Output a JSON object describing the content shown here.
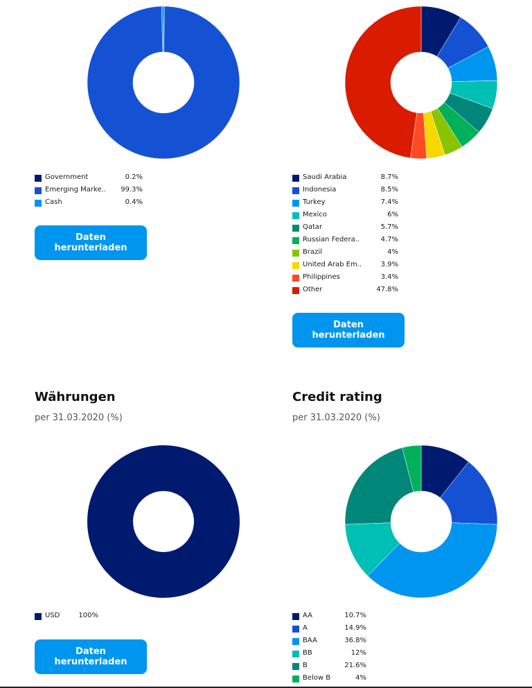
{
  "colors": {
    "button_bg": "#0096ef",
    "button_text": "#ffffff"
  },
  "download_label": "Daten herunterladen",
  "chart_data": [
    {
      "type": "pie",
      "title": "",
      "labels": [
        "Government",
        "Emerging Marke..",
        "Cash"
      ],
      "value_labels": [
        "0.2%",
        "99.3%",
        "0.4%"
      ],
      "values": [
        0.2,
        99.3,
        0.4
      ],
      "colors": [
        "#001a70",
        "#1552d3",
        "#0096ef"
      ]
    },
    {
      "type": "pie",
      "title": "",
      "labels": [
        "Saudi Arabia",
        "Indonesia",
        "Turkey",
        "Mexico",
        "Qatar",
        "Russian Federa..",
        "Brazil",
        "United Arab Em..",
        "Philippines",
        "Other"
      ],
      "value_labels": [
        "8.7%",
        "8.5%",
        "7.4%",
        "6%",
        "5.7%",
        "4.7%",
        "4%",
        "3.9%",
        "3.4%",
        "47.8%"
      ],
      "values": [
        8.7,
        8.5,
        7.4,
        6,
        5.7,
        4.7,
        4,
        3.9,
        3.4,
        47.8
      ],
      "colors": [
        "#001a70",
        "#1552d3",
        "#0096ef",
        "#00c0b5",
        "#00877a",
        "#00b05a",
        "#8ac400",
        "#f7d800",
        "#ff4a22",
        "#d91c00"
      ]
    },
    {
      "type": "pie",
      "title": "Währungen",
      "subtitle": "per 31.03.2020 (%)",
      "labels": [
        "USD"
      ],
      "value_labels": [
        "100%"
      ],
      "values": [
        100
      ],
      "colors": [
        "#001a70"
      ]
    },
    {
      "type": "pie",
      "title": "Credit rating",
      "subtitle": "per 31.03.2020 (%)",
      "labels": [
        "AA",
        "A",
        "BAA",
        "BB",
        "B",
        "Below B"
      ],
      "value_labels": [
        "10.7%",
        "14.9%",
        "36.8%",
        "12%",
        "21.6%",
        "4%"
      ],
      "values": [
        10.7,
        14.9,
        36.8,
        12,
        21.6,
        4
      ],
      "colors": [
        "#001a70",
        "#1552d3",
        "#0096ef",
        "#00c0b5",
        "#00877a",
        "#00b05a"
      ]
    }
  ]
}
